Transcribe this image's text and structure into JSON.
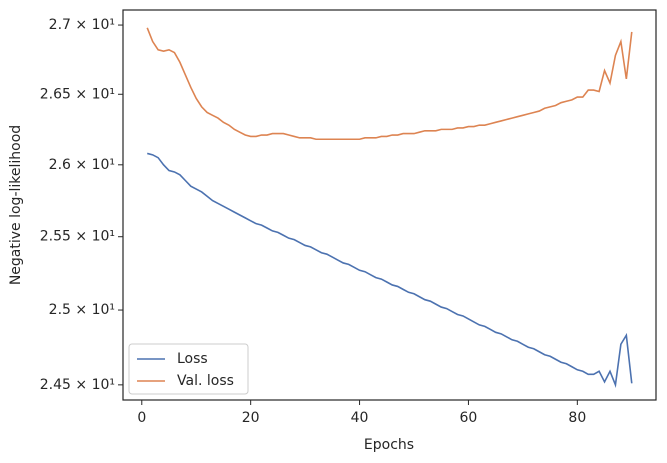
{
  "chart_data": {
    "type": "line",
    "xlabel": "Epochs",
    "ylabel": "Negative log-likelihood",
    "x": [
      1,
      2,
      3,
      4,
      5,
      6,
      7,
      8,
      9,
      10,
      11,
      12,
      13,
      14,
      15,
      16,
      17,
      18,
      19,
      20,
      21,
      22,
      23,
      24,
      25,
      26,
      27,
      28,
      29,
      30,
      31,
      32,
      33,
      34,
      35,
      36,
      37,
      38,
      39,
      40,
      41,
      42,
      43,
      44,
      45,
      46,
      47,
      48,
      49,
      50,
      51,
      52,
      53,
      54,
      55,
      56,
      57,
      58,
      59,
      60,
      61,
      62,
      63,
      64,
      65,
      66,
      67,
      68,
      69,
      70,
      71,
      72,
      73,
      74,
      75,
      76,
      77,
      78,
      79,
      80,
      81,
      82,
      83,
      84,
      85,
      86,
      87,
      88,
      89,
      90
    ],
    "series": [
      {
        "name": "Loss",
        "color": "#4c72b0",
        "values": [
          26.08,
          26.07,
          26.05,
          26.0,
          25.96,
          25.95,
          25.93,
          25.89,
          25.85,
          25.83,
          25.81,
          25.78,
          25.75,
          25.73,
          25.71,
          25.69,
          25.67,
          25.65,
          25.63,
          25.61,
          25.59,
          25.58,
          25.56,
          25.54,
          25.53,
          25.51,
          25.49,
          25.48,
          25.46,
          25.44,
          25.43,
          25.41,
          25.39,
          25.38,
          25.36,
          25.34,
          25.32,
          25.31,
          25.29,
          25.27,
          25.26,
          25.24,
          25.22,
          25.21,
          25.19,
          25.17,
          25.16,
          25.14,
          25.12,
          25.11,
          25.09,
          25.07,
          25.06,
          25.04,
          25.02,
          25.01,
          24.99,
          24.97,
          24.96,
          24.94,
          24.92,
          24.9,
          24.89,
          24.87,
          24.85,
          24.84,
          24.82,
          24.8,
          24.79,
          24.77,
          24.75,
          24.74,
          24.72,
          24.7,
          24.69,
          24.67,
          24.65,
          24.64,
          24.62,
          24.6,
          24.59,
          24.57,
          24.57,
          24.59,
          24.52,
          24.59,
          24.5,
          24.77,
          24.83,
          24.51
        ]
      },
      {
        "name": "Val. loss",
        "color": "#dd8452",
        "values": [
          26.98,
          26.88,
          26.82,
          26.81,
          26.82,
          26.8,
          26.73,
          26.64,
          26.55,
          26.47,
          26.41,
          26.37,
          26.35,
          26.33,
          26.3,
          26.28,
          26.25,
          26.23,
          26.21,
          26.2,
          26.2,
          26.21,
          26.21,
          26.22,
          26.22,
          26.22,
          26.21,
          26.2,
          26.19,
          26.19,
          26.19,
          26.18,
          26.18,
          26.18,
          26.18,
          26.18,
          26.18,
          26.18,
          26.18,
          26.18,
          26.19,
          26.19,
          26.19,
          26.2,
          26.2,
          26.21,
          26.21,
          26.22,
          26.22,
          26.22,
          26.23,
          26.24,
          26.24,
          26.24,
          26.25,
          26.25,
          26.25,
          26.26,
          26.26,
          26.27,
          26.27,
          26.28,
          26.28,
          26.29,
          26.3,
          26.31,
          26.32,
          26.33,
          26.34,
          26.35,
          26.36,
          26.37,
          26.38,
          26.4,
          26.41,
          26.42,
          26.44,
          26.45,
          26.46,
          26.48,
          26.48,
          26.53,
          26.53,
          26.52,
          26.67,
          26.58,
          26.78,
          26.88,
          26.61,
          26.95
        ]
      }
    ],
    "xlim": [
      -3.45,
      94.45
    ],
    "xticks": [
      0,
      20,
      40,
      60,
      80
    ],
    "ylim": [
      24.4,
      27.11
    ],
    "yscale": "log",
    "yticks": [
      {
        "value": 24.5,
        "label": "2.45 × 10¹"
      },
      {
        "value": 25,
        "label": "2.5 × 10¹"
      },
      {
        "value": 25.5,
        "label": "2.55 × 10¹"
      },
      {
        "value": 26,
        "label": "2.6 × 10¹"
      },
      {
        "value": 26.5,
        "label": "2.65 × 10¹"
      },
      {
        "value": 27,
        "label": "2.7 × 10¹"
      }
    ],
    "grid": false,
    "legend": "lower left"
  }
}
